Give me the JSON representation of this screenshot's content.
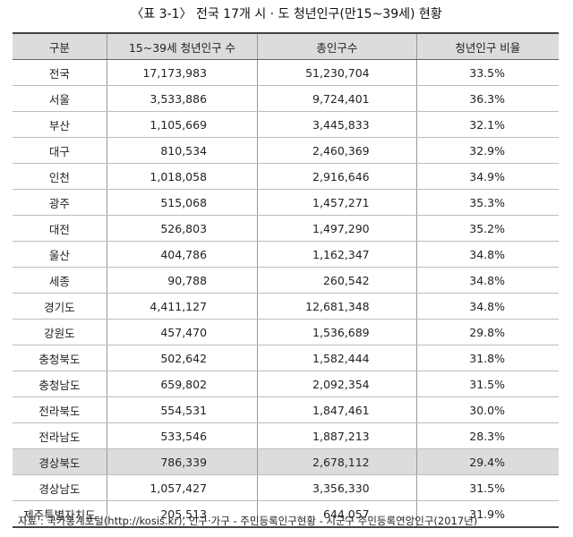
{
  "title": "〈표 3-1〉 전국 17개 시 · 도 청년인구(만15~39세) 현황",
  "headers": [
    "구분",
    "15~39세 청년인구 수",
    "총인구수",
    "청년인구 비율"
  ],
  "rows": [
    {
      "region": "전국",
      "youth": "17,173,983",
      "total": "51,230,704",
      "ratio": "33.5%"
    },
    {
      "region": "서울",
      "youth": "3,533,886",
      "total": "9,724,401",
      "ratio": "36.3%"
    },
    {
      "region": "부산",
      "youth": "1,105,669",
      "total": "3,445,833",
      "ratio": "32.1%"
    },
    {
      "region": "대구",
      "youth": "810,534",
      "total": "2,460,369",
      "ratio": "32.9%"
    },
    {
      "region": "인천",
      "youth": "1,018,058",
      "total": "2,916,646",
      "ratio": "34.9%"
    },
    {
      "region": "광주",
      "youth": "515,068",
      "total": "1,457,271",
      "ratio": "35.3%"
    },
    {
      "region": "대전",
      "youth": "526,803",
      "total": "1,497,290",
      "ratio": "35.2%"
    },
    {
      "region": "울산",
      "youth": "404,786",
      "total": "1,162,347",
      "ratio": "34.8%"
    },
    {
      "region": "세종",
      "youth": "90,788",
      "total": "260,542",
      "ratio": "34.8%"
    },
    {
      "region": "경기도",
      "youth": "4,411,127",
      "total": "12,681,348",
      "ratio": "34.8%"
    },
    {
      "region": "강원도",
      "youth": "457,470",
      "total": "1,536,689",
      "ratio": "29.8%"
    },
    {
      "region": "충청북도",
      "youth": "502,642",
      "total": "1,582,444",
      "ratio": "31.8%"
    },
    {
      "region": "충청남도",
      "youth": "659,802",
      "total": "2,092,354",
      "ratio": "31.5%"
    },
    {
      "region": "전라북도",
      "youth": "554,531",
      "total": "1,847,461",
      "ratio": "30.0%"
    },
    {
      "region": "전라남도",
      "youth": "533,546",
      "total": "1,887,213",
      "ratio": "28.3%"
    },
    {
      "region": "경상북도",
      "youth": "786,339",
      "total": "2,678,112",
      "ratio": "29.4%"
    },
    {
      "region": "경상남도",
      "youth": "1,057,427",
      "total": "3,356,330",
      "ratio": "31.5%"
    },
    {
      "region": "제주특별자치도",
      "youth": "205,513",
      "total": "644,057",
      "ratio": "31.9%"
    }
  ],
  "highlighted_row": "경상북도",
  "highlight_color": "#dcdcdc",
  "source": "자료 : 국가통계포털(http://kosis.kr), 인구·가구 - 주민등록인구현황 - 시군구 주민등록연앙인구(2017년)"
}
